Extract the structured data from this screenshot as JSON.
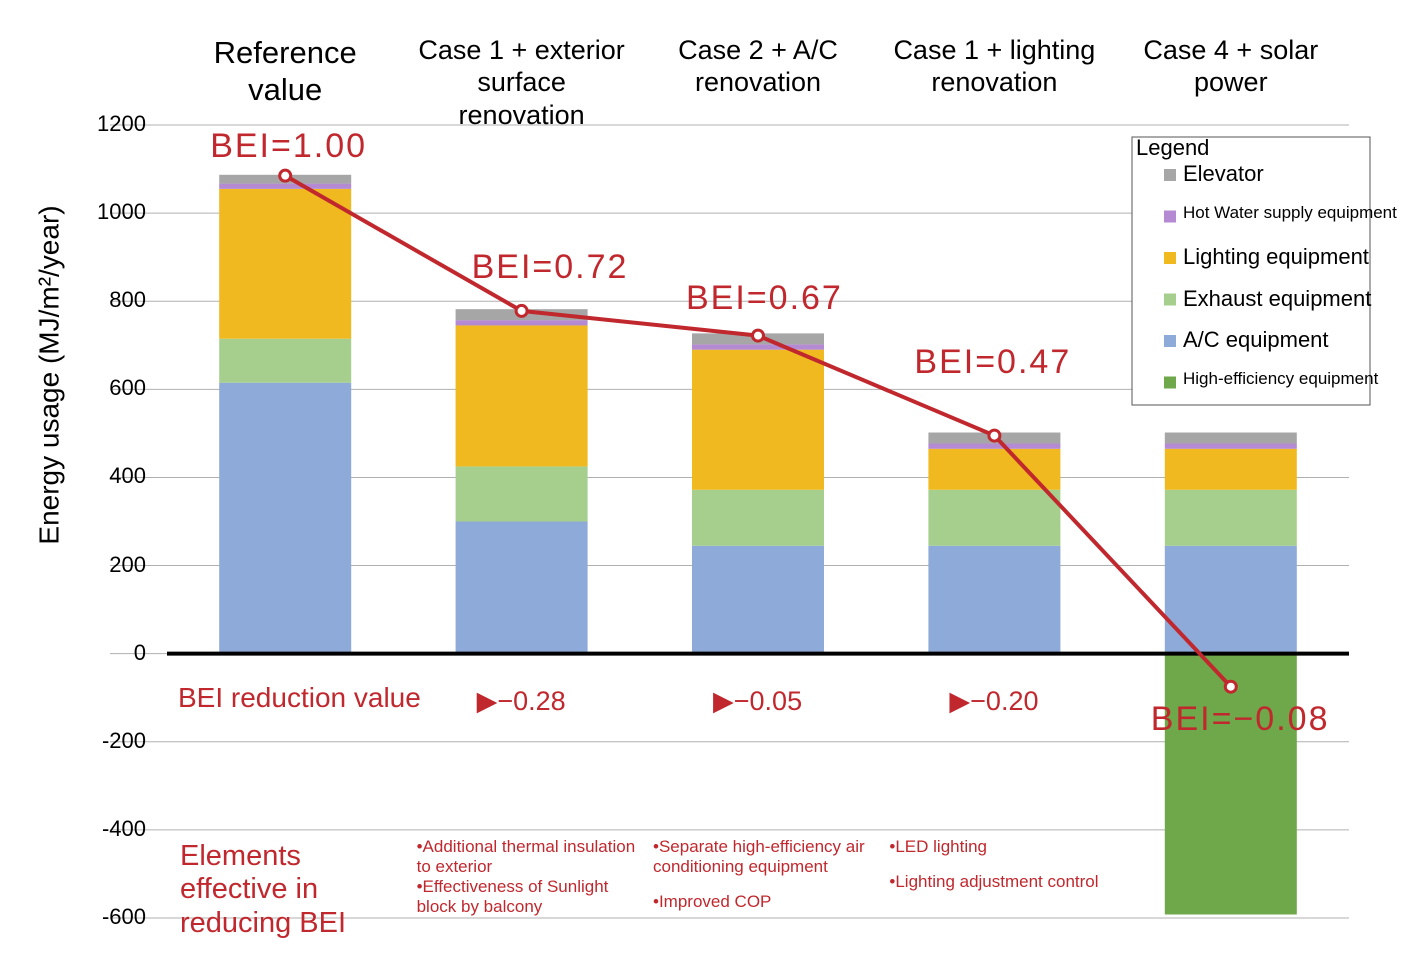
{
  "chart_data": {
    "type": "stacked_bar_line",
    "categories": [
      "Reference value",
      "Case 1 + exterior surface renovation",
      "Case 2 + A/C renovation",
      "Case 1 + lighting renovation",
      "Case 4 + solar power"
    ],
    "y_label": "Energy usage (MJ/m²/year)",
    "ylim": [
      -600,
      1200
    ],
    "yticks": [
      -600,
      -400,
      -200,
      0,
      200,
      400,
      600,
      800,
      1000,
      1200
    ],
    "grid": true,
    "legend_title": "Legend",
    "series": [
      {
        "name": "Elevator",
        "color": "#a6a6a6",
        "values": [
          20,
          25,
          25,
          25,
          25
        ]
      },
      {
        "name": "Hot Water supply equipment",
        "color": "#b48ad2",
        "values": [
          12,
          12,
          12,
          12,
          12
        ]
      },
      {
        "name": "Lighting equipment",
        "color": "#f0b91f",
        "values": [
          340,
          320,
          318,
          93,
          93
        ]
      },
      {
        "name": "Exhaust equipment",
        "color": "#a6cf8e",
        "values": [
          100,
          125,
          127,
          127,
          127
        ]
      },
      {
        "name": "A/C equipment",
        "color": "#8eaad8",
        "values": [
          615,
          300,
          245,
          245,
          245
        ]
      },
      {
        "name": "High-efficiency equipment",
        "color": "#6fa84a",
        "values": [
          null,
          null,
          null,
          null,
          -592
        ]
      }
    ],
    "line_color": "#c0282e",
    "line_values": [
      1085,
      778,
      722,
      495,
      -75
    ],
    "bei_values": [
      1.0,
      0.72,
      0.67,
      0.47,
      -0.08
    ],
    "bei_labels": [
      "BEI=1.00",
      "BEI=0.72",
      "BEI=0.67",
      "BEI=0.47",
      "BEI=−0.08"
    ],
    "reduction": {
      "label": "BEI reduction value",
      "values": [
        null,
        -0.28,
        -0.05,
        -0.2,
        null
      ],
      "value_labels": [
        null,
        "▶−0.28",
        "▶−0.05",
        "▶−0.20",
        null
      ]
    },
    "elements": {
      "label": "Elements effective in reducing BEI",
      "items": [
        null,
        [
          "•Additional thermal insulation to exterior",
          "•Effectiveness of Sunlight block by balcony"
        ],
        [
          "•Separate high-efficiency air conditioning equipment",
          "•Improved COP"
        ],
        [
          "•LED lighting",
          "•Lighting adjustment control"
        ],
        null
      ]
    }
  }
}
